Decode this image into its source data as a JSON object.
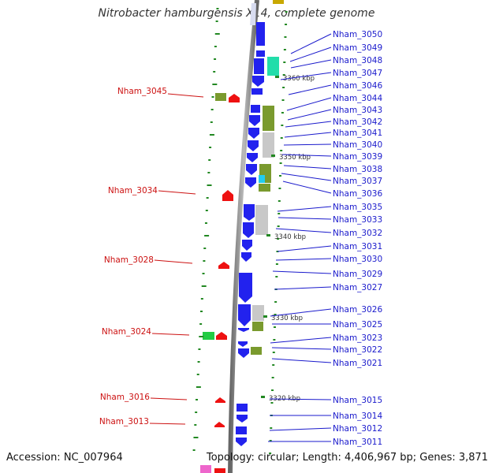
{
  "title": "Nitrobacter hamburgensis X14, complete genome",
  "footer": {
    "accession": "Accession: NC_007964",
    "summary": "Topology: circular; Length: 4,406,967 bp; Genes: 3,871"
  },
  "colors": {
    "forward_gene": "#2222ee",
    "reverse_gene": "#ee1111",
    "cog_green": "#7a9a2e",
    "cog_gray": "#c8c8c8",
    "cog_teal": "#22ddaa",
    "cog_cyan": "#22ccee",
    "label_right": "#1a1acc",
    "label_left": "#cc1111",
    "backbone": "#888888"
  },
  "scale_labels": [
    "3360 kbp",
    "3350 kbp",
    "3340 kbp",
    "3330 kbp",
    "3320 kbp"
  ],
  "right_genes": [
    "Nham_3050",
    "Nham_3049",
    "Nham_3048",
    "Nham_3047",
    "Nham_3046",
    "Nham_3044",
    "Nham_3043",
    "Nham_3042",
    "Nham_3041",
    "Nham_3040",
    "Nham_3039",
    "Nham_3038",
    "Nham_3037",
    "Nham_3036",
    "Nham_3035",
    "Nham_3033",
    "Nham_3032",
    "Nham_3031",
    "Nham_3030",
    "Nham_3029",
    "Nham_3027",
    "Nham_3026",
    "Nham_3025",
    "Nham_3023",
    "Nham_3022",
    "Nham_3021",
    "Nham_3015",
    "Nham_3014",
    "Nham_3012",
    "Nham_3011"
  ],
  "left_genes": [
    "Nham_3045",
    "Nham_3034",
    "Nham_3028",
    "Nham_3024",
    "Nham_3016",
    "Nham_3013"
  ]
}
